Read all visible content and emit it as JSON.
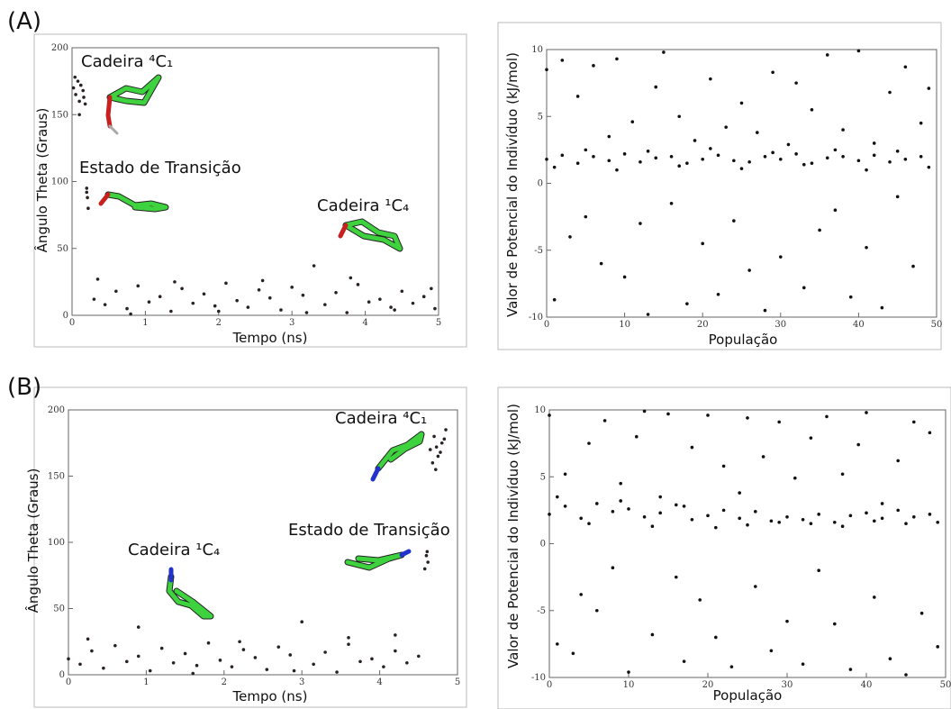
{
  "chart_data": [
    {
      "type": "scatter",
      "panel_label": "(A)",
      "xlabel": "Tempo (ns)",
      "ylabel": "Ângulo Theta (Graus)",
      "annotations": [
        "Cadeira ⁴C₁",
        "Estado de Transição",
        "Cadeira ¹C₄"
      ],
      "xlim": [
        0,
        5
      ],
      "ylim": [
        0,
        200
      ],
      "xticks": [
        0,
        1,
        2,
        3,
        4,
        5
      ],
      "yticks": [
        0,
        50,
        100,
        150,
        200
      ],
      "color": "#2a2222",
      "x": [
        0.02,
        0.05,
        0.08,
        0.1,
        0.12,
        0.15,
        0.18,
        0.04,
        0.1,
        0.16,
        0.2,
        0.21,
        0.22,
        0.2,
        0.3,
        0.45,
        0.6,
        0.75,
        0.9,
        1.05,
        1.2,
        1.35,
        1.5,
        1.65,
        1.8,
        1.95,
        2.1,
        2.25,
        2.4,
        2.55,
        2.7,
        2.85,
        3.0,
        3.15,
        3.3,
        3.45,
        3.6,
        3.75,
        3.9,
        4.05,
        4.2,
        4.35,
        4.5,
        4.65,
        4.8,
        4.95,
        0.35,
        0.8,
        1.4,
        2.0,
        2.6,
        3.2,
        3.8,
        4.4,
        4.9
      ],
      "values": [
        170,
        165,
        175,
        160,
        172,
        168,
        158,
        178,
        150,
        163,
        95,
        88,
        80,
        92,
        12,
        8,
        18,
        5,
        22,
        10,
        14,
        3,
        20,
        9,
        16,
        7,
        24,
        11,
        6,
        19,
        13,
        4,
        21,
        15,
        37,
        8,
        17,
        2,
        23,
        10,
        12,
        6,
        18,
        9,
        14,
        5,
        27,
        1,
        25,
        3,
        26,
        2,
        28,
        4,
        20
      ]
    },
    {
      "type": "scatter",
      "xlabel": "População",
      "ylabel": "Valor de Potencial do Indivíduo (kJ/mol)",
      "xlim": [
        0,
        50
      ],
      "ylim": [
        -10,
        10
      ],
      "xticks": [
        0,
        10,
        20,
        30,
        40,
        50
      ],
      "yticks": [
        -10,
        -5,
        0,
        5,
        10
      ],
      "color": "#111111",
      "x": [
        0,
        1,
        2,
        3,
        4,
        5,
        6,
        7,
        8,
        9,
        10,
        11,
        12,
        13,
        14,
        15,
        16,
        17,
        18,
        19,
        20,
        21,
        22,
        23,
        24,
        25,
        26,
        27,
        28,
        29,
        30,
        31,
        32,
        33,
        34,
        35,
        36,
        37,
        38,
        39,
        40,
        41,
        42,
        43,
        44,
        45,
        46,
        47,
        48,
        49,
        0,
        2,
        4,
        6,
        8,
        10,
        12,
        14,
        16,
        18,
        20,
        22,
        24,
        26,
        28,
        30,
        32,
        34,
        36,
        38,
        40,
        42,
        44,
        46,
        48,
        1,
        5,
        9,
        13,
        17,
        21,
        25,
        29,
        33,
        37,
        41,
        45,
        49
      ],
      "values": [
        8.5,
        -8.7,
        9.2,
        -4,
        6.5,
        -2.5,
        8.8,
        -6,
        3.5,
        9.3,
        -7,
        4.6,
        -3,
        -9.8,
        7.2,
        9.8,
        -1.5,
        5,
        -9,
        3.2,
        -4.5,
        7.8,
        -8.3,
        4.2,
        -2.8,
        6,
        -6.5,
        3.8,
        -9.5,
        8.3,
        -5.5,
        2.9,
        7.5,
        -7.8,
        5.5,
        -3.5,
        9.6,
        -2,
        4,
        -8.5,
        9.9,
        -4.8,
        3,
        -9.3,
        6.8,
        -1,
        8.7,
        -6.2,
        4.5,
        7.1,
        1.8,
        2.1,
        1.5,
        2.0,
        1.7,
        2.2,
        1.6,
        1.9,
        2.0,
        1.5,
        1.8,
        2.1,
        1.7,
        1.6,
        2.0,
        1.8,
        2.2,
        1.5,
        1.9,
        2.0,
        1.7,
        2.1,
        1.6,
        1.8,
        2.0,
        1.2,
        2.5,
        1.0,
        2.4,
        1.3,
        2.6,
        1.1,
        2.3,
        1.4,
        2.5,
        1.0,
        2.4,
        1.2
      ]
    },
    {
      "type": "scatter",
      "panel_label": "(B)",
      "xlabel": "Tempo (ns)",
      "ylabel": "Ângulo Theta (Graus)",
      "annotations": [
        "Cadeira ⁴C₁",
        "Estado de Transição",
        "Cadeira ¹C₄"
      ],
      "xlim": [
        0,
        5
      ],
      "ylim": [
        0,
        200
      ],
      "xticks": [
        0,
        1,
        2,
        3,
        4,
        5
      ],
      "yticks": [
        0,
        50,
        100,
        150,
        200
      ],
      "color": "#2a2222",
      "x": [
        4.65,
        4.7,
        4.75,
        4.8,
        4.85,
        4.68,
        4.73,
        4.78,
        4.83,
        4.72,
        4.6,
        4.62,
        4.58,
        4.61,
        0,
        0.15,
        0.3,
        0.45,
        0.6,
        0.75,
        0.9,
        1.05,
        1.2,
        1.35,
        1.5,
        1.65,
        1.8,
        1.95,
        2.1,
        2.25,
        2.4,
        2.55,
        2.7,
        2.85,
        3.0,
        3.15,
        3.3,
        3.45,
        3.6,
        3.75,
        3.9,
        4.05,
        4.2,
        4.35,
        4.5,
        0.25,
        0.9,
        1.6,
        2.2,
        2.9,
        3.6,
        4.2
      ],
      "values": [
        170,
        180,
        165,
        175,
        185,
        160,
        172,
        168,
        178,
        155,
        90,
        85,
        80,
        93,
        12,
        8,
        18,
        5,
        22,
        10,
        14,
        3,
        20,
        9,
        16,
        7,
        24,
        11,
        6,
        19,
        13,
        4,
        21,
        15,
        40,
        8,
        17,
        2,
        23,
        10,
        12,
        6,
        18,
        9,
        14,
        27,
        36,
        1,
        25,
        3,
        28,
        30
      ]
    },
    {
      "type": "scatter",
      "xlabel": "População",
      "ylabel": "Valor de Potencial do Indivíduo (kJ/mol)",
      "xlim": [
        0,
        50
      ],
      "ylim": [
        -10,
        10
      ],
      "xticks": [
        0,
        10,
        20,
        30,
        40,
        50
      ],
      "yticks": [
        -10,
        -5,
        0,
        5,
        10
      ],
      "color": "#111111",
      "x": [
        0,
        1,
        2,
        3,
        4,
        5,
        6,
        7,
        8,
        9,
        10,
        11,
        12,
        13,
        14,
        15,
        16,
        17,
        18,
        19,
        20,
        21,
        22,
        23,
        24,
        25,
        26,
        27,
        28,
        29,
        30,
        31,
        32,
        33,
        34,
        35,
        36,
        37,
        38,
        39,
        40,
        41,
        42,
        43,
        44,
        45,
        46,
        47,
        48,
        49,
        0,
        2,
        4,
        6,
        8,
        10,
        12,
        14,
        16,
        18,
        20,
        22,
        24,
        26,
        28,
        30,
        32,
        34,
        36,
        38,
        40,
        42,
        44,
        46,
        48,
        1,
        5,
        9,
        13,
        17,
        21,
        25,
        29,
        33,
        37,
        41,
        45,
        49
      ],
      "values": [
        9.6,
        -7.5,
        5.2,
        -8.2,
        -3.8,
        7.5,
        -5,
        9.2,
        -1.8,
        4.5,
        -9.6,
        8,
        9.9,
        -6.8,
        3.5,
        9.7,
        -2.5,
        -8.8,
        7.2,
        -4.2,
        9.6,
        -7,
        5.8,
        -9.2,
        3.8,
        9.4,
        -3.2,
        6.5,
        -8,
        9.1,
        -5.8,
        4.9,
        -9,
        7.9,
        -2,
        9.5,
        -6,
        5.2,
        -9.4,
        7.4,
        9.8,
        -4,
        3,
        -8.6,
        6.2,
        -9.8,
        9.1,
        -5.2,
        8.3,
        -7.7,
        2.2,
        2.8,
        1.9,
        3.0,
        2.4,
        2.6,
        2.0,
        2.3,
        2.9,
        1.8,
        2.1,
        2.5,
        1.9,
        2.4,
        1.7,
        2.0,
        1.8,
        2.2,
        1.6,
        2.1,
        2.3,
        1.9,
        2.5,
        2.0,
        2.2,
        3.5,
        1.5,
        3.2,
        1.3,
        2.8,
        1.2,
        1.4,
        1.6,
        1.5,
        1.3,
        1.7,
        1.5,
        1.6
      ]
    }
  ]
}
